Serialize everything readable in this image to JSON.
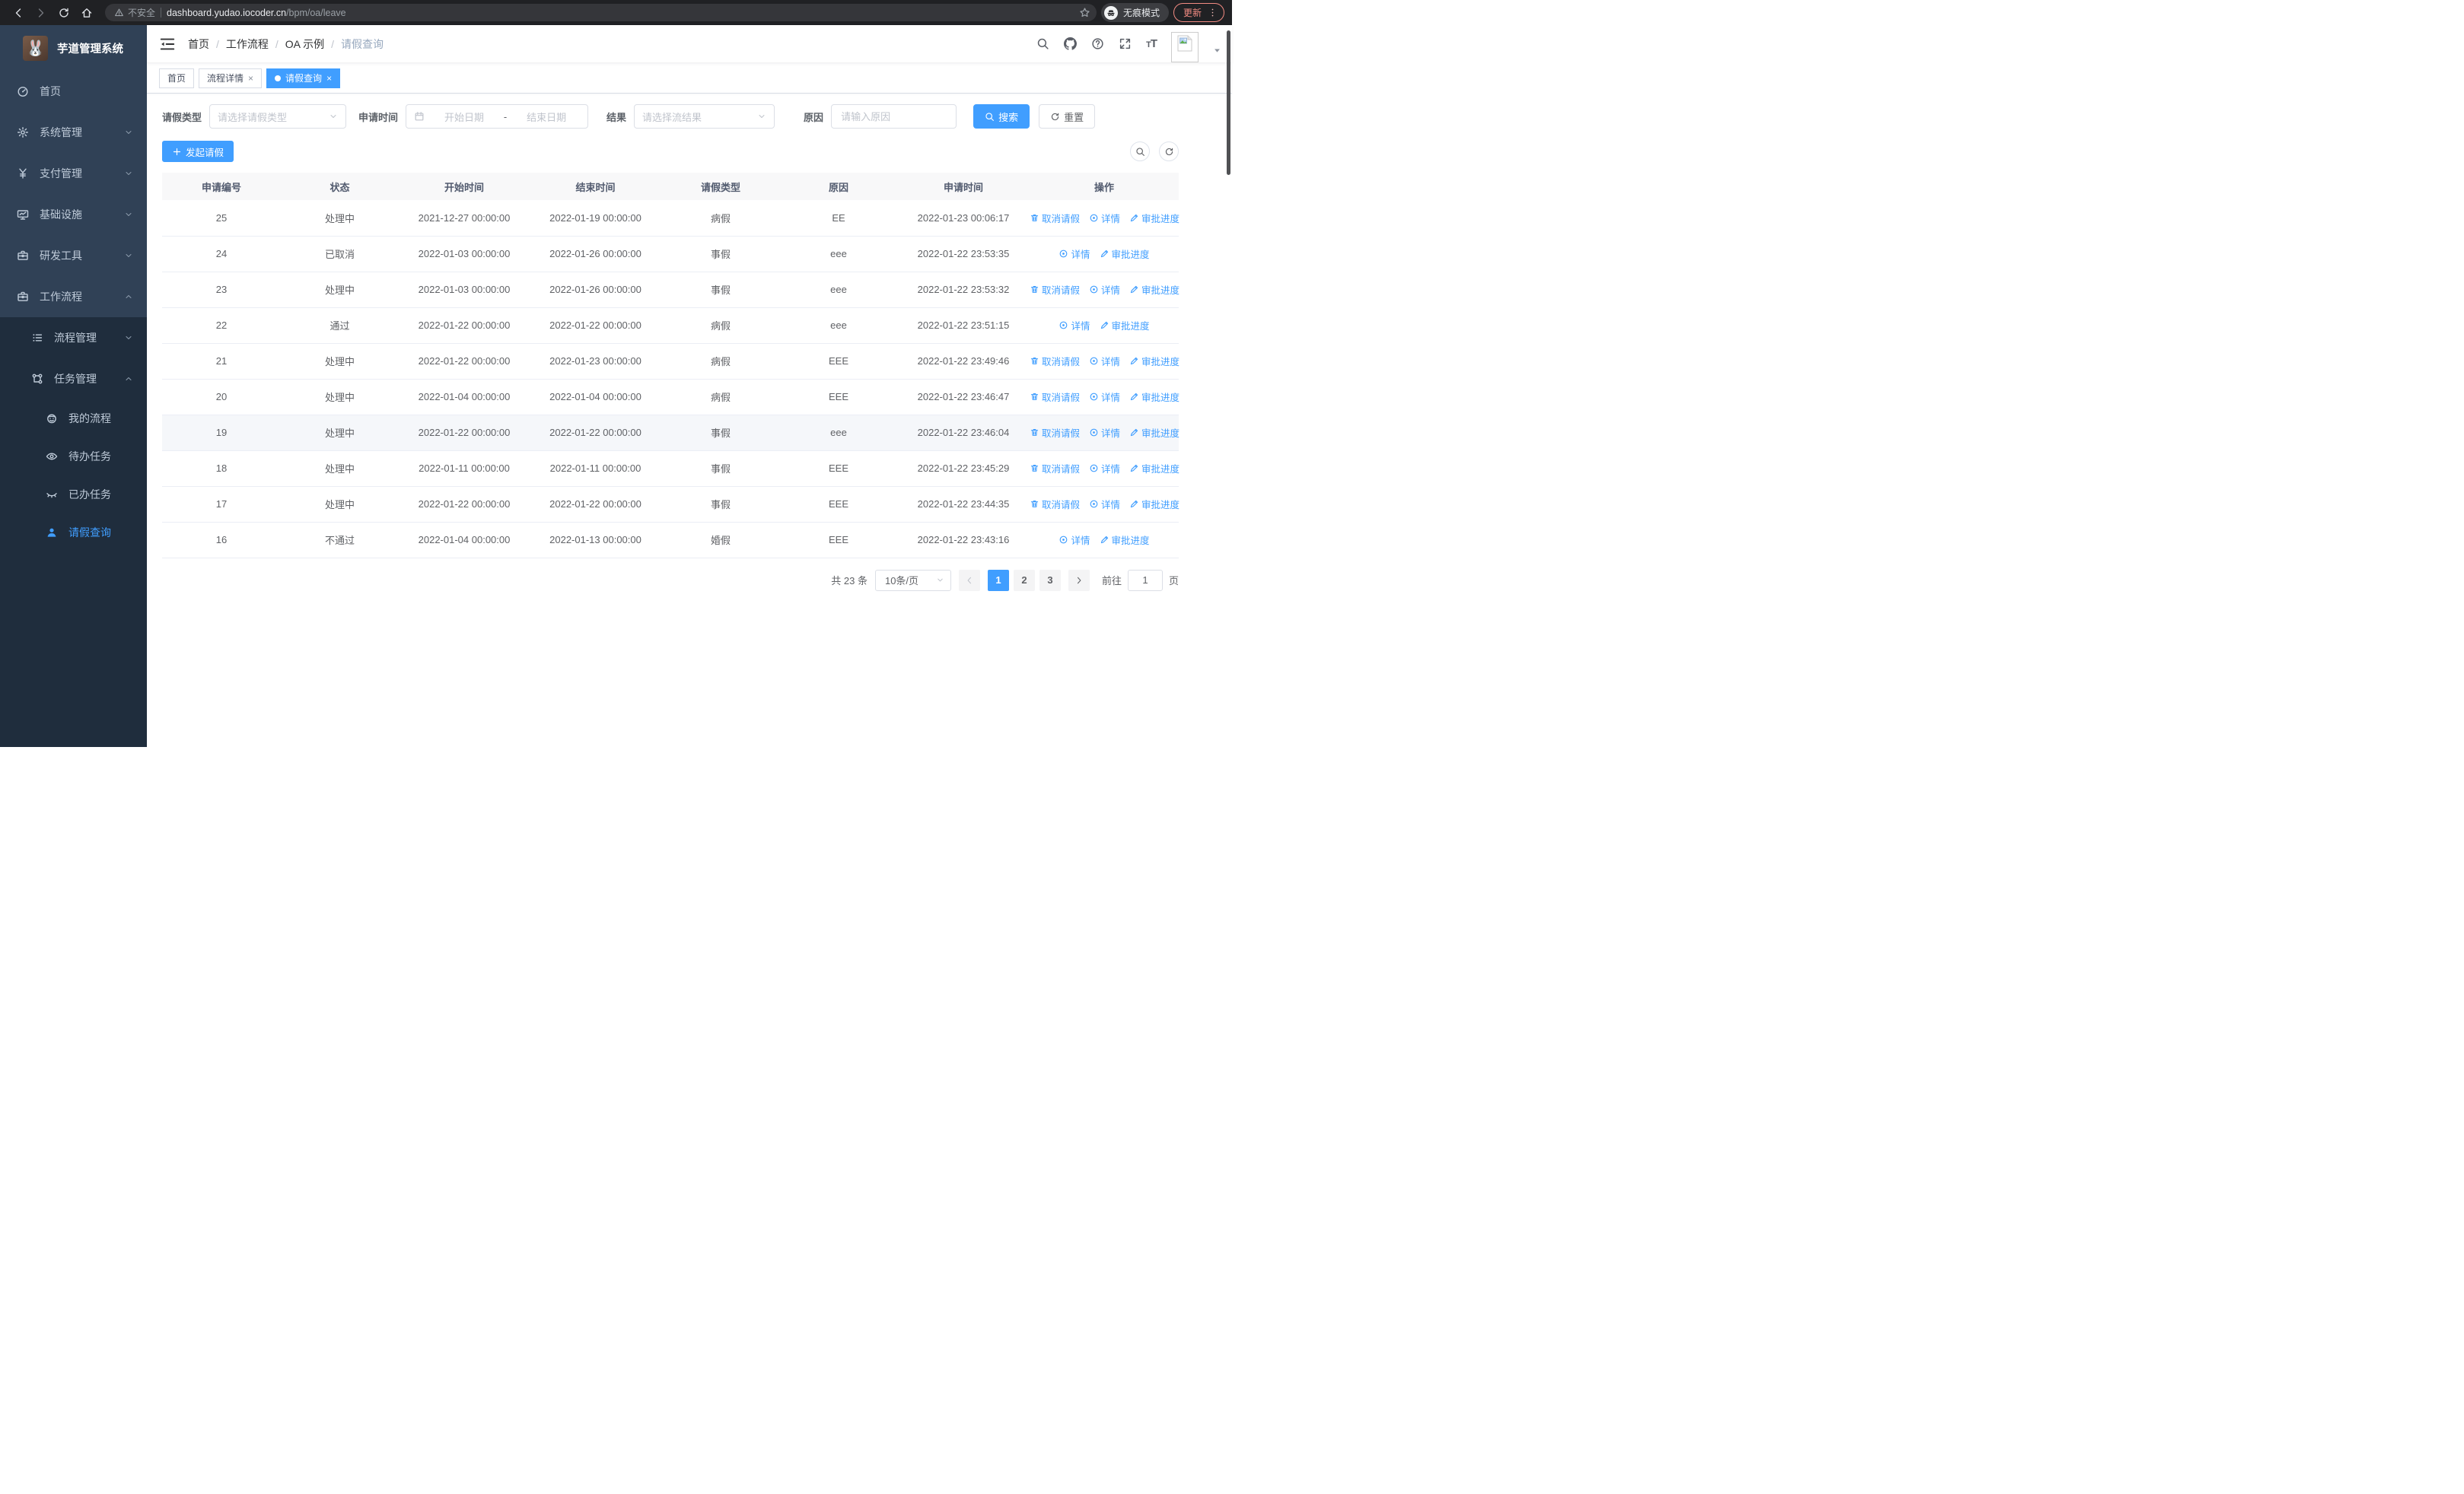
{
  "browser": {
    "security_label": "不安全",
    "url_host": "dashboard.yudao.iocoder.cn",
    "url_path": "/bpm/oa/leave",
    "incognito_label": "无痕模式",
    "update_label": "更新"
  },
  "sidebar": {
    "app_title": "芋道管理系统",
    "items": [
      {
        "name": "home",
        "label": "首页",
        "icon": "gauge",
        "depth": 0,
        "chevron": ""
      },
      {
        "name": "system-management",
        "label": "系统管理",
        "icon": "gear",
        "depth": 0,
        "chevron": "down"
      },
      {
        "name": "payment-management",
        "label": "支付管理",
        "icon": "yen",
        "depth": 0,
        "chevron": "down"
      },
      {
        "name": "infrastructure",
        "label": "基础设施",
        "icon": "monitor",
        "depth": 0,
        "chevron": "down"
      },
      {
        "name": "dev-tools",
        "label": "研发工具",
        "icon": "toolbox",
        "depth": 0,
        "chevron": "down"
      },
      {
        "name": "workflow",
        "label": "工作流程",
        "icon": "briefcase",
        "depth": 0,
        "chevron": "up"
      },
      {
        "name": "process-management",
        "label": "流程管理",
        "icon": "list",
        "depth": 1,
        "chevron": "down"
      },
      {
        "name": "task-management",
        "label": "任务管理",
        "icon": "tree",
        "depth": 1,
        "chevron": "up"
      },
      {
        "name": "my-process",
        "label": "我的流程",
        "icon": "robot",
        "depth": 2,
        "chevron": ""
      },
      {
        "name": "todo-tasks",
        "label": "待办任务",
        "icon": "eye-open",
        "depth": 2,
        "chevron": ""
      },
      {
        "name": "done-tasks",
        "label": "已办任务",
        "icon": "eye-closed",
        "depth": 2,
        "chevron": ""
      },
      {
        "name": "leave-query",
        "label": "请假查询",
        "icon": "user",
        "depth": 2,
        "chevron": "",
        "active": true
      }
    ]
  },
  "header": {
    "breadcrumb": [
      {
        "label": "首页"
      },
      {
        "label": "工作流程"
      },
      {
        "label": "OA 示例"
      },
      {
        "label": "请假查询",
        "current": true
      }
    ]
  },
  "tabs": [
    {
      "name": "tab-home",
      "label": "首页",
      "closable": false,
      "active": false
    },
    {
      "name": "tab-process-detail",
      "label": "流程详情",
      "closable": true,
      "active": false
    },
    {
      "name": "tab-leave-query",
      "label": "请假查询",
      "closable": true,
      "active": true
    }
  ],
  "filters": {
    "leave_type_label": "请假类型",
    "leave_type_placeholder": "请选择请假类型",
    "apply_time_label": "申请时间",
    "start_date_placeholder": "开始日期",
    "date_separator": "-",
    "end_date_placeholder": "结束日期",
    "result_label": "结果",
    "result_placeholder": "请选择流结果",
    "reason_label": "原因",
    "reason_placeholder": "请输入原因",
    "search_label": "搜索",
    "reset_label": "重置"
  },
  "toolbar": {
    "create_label": "发起请假"
  },
  "table": {
    "columns": [
      "申请编号",
      "状态",
      "开始时间",
      "结束时间",
      "请假类型",
      "原因",
      "申请时间",
      "操作"
    ],
    "action_labels": {
      "cancel": "取消请假",
      "detail": "详情",
      "progress": "审批进度"
    },
    "rows": [
      {
        "id": "25",
        "status": "处理中",
        "start": "2021-12-27 00:00:00",
        "end": "2022-01-19 00:00:00",
        "type": "病假",
        "reason": "EE",
        "applied": "2022-01-23 00:06:17",
        "cancelable": true,
        "highlighted": false
      },
      {
        "id": "24",
        "status": "已取消",
        "start": "2022-01-03 00:00:00",
        "end": "2022-01-26 00:00:00",
        "type": "事假",
        "reason": "eee",
        "applied": "2022-01-22 23:53:35",
        "cancelable": false,
        "highlighted": false
      },
      {
        "id": "23",
        "status": "处理中",
        "start": "2022-01-03 00:00:00",
        "end": "2022-01-26 00:00:00",
        "type": "事假",
        "reason": "eee",
        "applied": "2022-01-22 23:53:32",
        "cancelable": true,
        "highlighted": false
      },
      {
        "id": "22",
        "status": "通过",
        "start": "2022-01-22 00:00:00",
        "end": "2022-01-22 00:00:00",
        "type": "病假",
        "reason": "eee",
        "applied": "2022-01-22 23:51:15",
        "cancelable": false,
        "highlighted": false
      },
      {
        "id": "21",
        "status": "处理中",
        "start": "2022-01-22 00:00:00",
        "end": "2022-01-23 00:00:00",
        "type": "病假",
        "reason": "EEE",
        "applied": "2022-01-22 23:49:46",
        "cancelable": true,
        "highlighted": false
      },
      {
        "id": "20",
        "status": "处理中",
        "start": "2022-01-04 00:00:00",
        "end": "2022-01-04 00:00:00",
        "type": "病假",
        "reason": "EEE",
        "applied": "2022-01-22 23:46:47",
        "cancelable": true,
        "highlighted": false
      },
      {
        "id": "19",
        "status": "处理中",
        "start": "2022-01-22 00:00:00",
        "end": "2022-01-22 00:00:00",
        "type": "事假",
        "reason": "eee",
        "applied": "2022-01-22 23:46:04",
        "cancelable": true,
        "highlighted": true
      },
      {
        "id": "18",
        "status": "处理中",
        "start": "2022-01-11 00:00:00",
        "end": "2022-01-11 00:00:00",
        "type": "事假",
        "reason": "EEE",
        "applied": "2022-01-22 23:45:29",
        "cancelable": true,
        "highlighted": false
      },
      {
        "id": "17",
        "status": "处理中",
        "start": "2022-01-22 00:00:00",
        "end": "2022-01-22 00:00:00",
        "type": "事假",
        "reason": "EEE",
        "applied": "2022-01-22 23:44:35",
        "cancelable": true,
        "highlighted": false
      },
      {
        "id": "16",
        "status": "不通过",
        "start": "2022-01-04 00:00:00",
        "end": "2022-01-13 00:00:00",
        "type": "婚假",
        "reason": "EEE",
        "applied": "2022-01-22 23:43:16",
        "cancelable": false,
        "highlighted": false
      }
    ]
  },
  "pagination": {
    "total_label": "共 23 条",
    "page_size_label": "10条/页",
    "pages": [
      "1",
      "2",
      "3"
    ],
    "active_page": "1",
    "goto_label": "前往",
    "goto_value": "1",
    "goto_suffix": "页"
  },
  "colors": {
    "accent": "#409eff",
    "sidebar_bg": "#304156",
    "submenu_bg": "#1f2d3d",
    "update_accent": "#f28b82",
    "link": "#409eff"
  }
}
